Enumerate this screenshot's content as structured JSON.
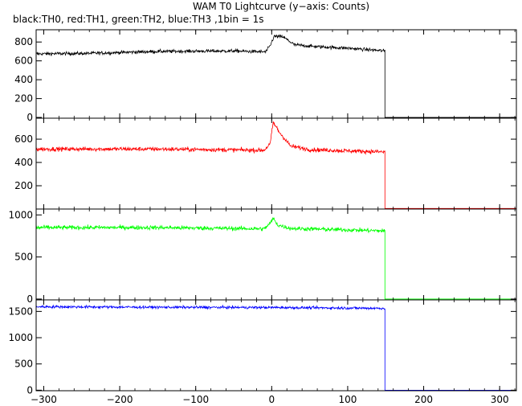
{
  "title": "WAM T0 Lightcurve (y−axis: Counts)",
  "subtitle": "black:TH0, red:TH1, green:TH2, blue:TH3 ,1bin = 1s",
  "chart_data": {
    "type": "line",
    "shared_x": {
      "xlim": [
        -310,
        322
      ],
      "ticks": [
        -300,
        -200,
        -100,
        0,
        100,
        200,
        300
      ],
      "tick_labels": [
        "−300",
        "−200",
        "−100",
        "0",
        "100",
        "200",
        "300"
      ]
    },
    "panels": [
      {
        "series_name": "TH0",
        "color": "#000000",
        "ylim": [
          -8,
          930
        ],
        "yticks": [
          0,
          200,
          400,
          600,
          800
        ],
        "ytick_labels": [
          "0",
          "200",
          "400",
          "600",
          "800"
        ],
        "profile": [
          [
            -310,
            675
          ],
          [
            -250,
            678
          ],
          [
            -150,
            700
          ],
          [
            -50,
            705
          ],
          [
            -8,
            695
          ],
          [
            -2,
            760
          ],
          [
            3,
            860
          ],
          [
            15,
            855
          ],
          [
            30,
            770
          ],
          [
            60,
            750
          ],
          [
            100,
            735
          ],
          [
            149,
            705
          ]
        ],
        "noise": 18,
        "drop_at": 149,
        "after_value": 0
      },
      {
        "series_name": "TH1",
        "color": "#ff0000",
        "ylim": [
          0,
          780
        ],
        "yticks": [
          200,
          400,
          600
        ],
        "ytick_labels": [
          "200",
          "400",
          "600"
        ],
        "profile": [
          [
            -310,
            515
          ],
          [
            -150,
            515
          ],
          [
            -10,
            505
          ],
          [
            -2,
            560
          ],
          [
            2,
            745
          ],
          [
            10,
            660
          ],
          [
            25,
            540
          ],
          [
            50,
            510
          ],
          [
            149,
            490
          ]
        ],
        "noise": 18,
        "drop_at": 149,
        "after_value": 5
      },
      {
        "series_name": "TH2",
        "color": "#00ff00",
        "ylim": [
          -10,
          1070
        ],
        "yticks": [
          0,
          500,
          1000
        ],
        "ytick_labels": [
          "0",
          "500",
          "1000"
        ],
        "profile": [
          [
            -310,
            850
          ],
          [
            -150,
            850
          ],
          [
            -10,
            835
          ],
          [
            -2,
            900
          ],
          [
            2,
            960
          ],
          [
            8,
            880
          ],
          [
            25,
            840
          ],
          [
            149,
            810
          ]
        ],
        "noise": 25,
        "drop_at": 149,
        "after_value": 0
      },
      {
        "series_name": "TH3",
        "color": "#0000ff",
        "ylim": [
          -10,
          1720
        ],
        "yticks": [
          0,
          500,
          1000,
          1500
        ],
        "ytick_labels": [
          "0",
          "500",
          "1000",
          "1500"
        ],
        "profile": [
          [
            -310,
            1590
          ],
          [
            -150,
            1580
          ],
          [
            0,
            1575
          ],
          [
            149,
            1560
          ]
        ],
        "noise": 25,
        "drop_at": 149,
        "after_value": 0
      }
    ],
    "grid": false,
    "legend": "none"
  }
}
